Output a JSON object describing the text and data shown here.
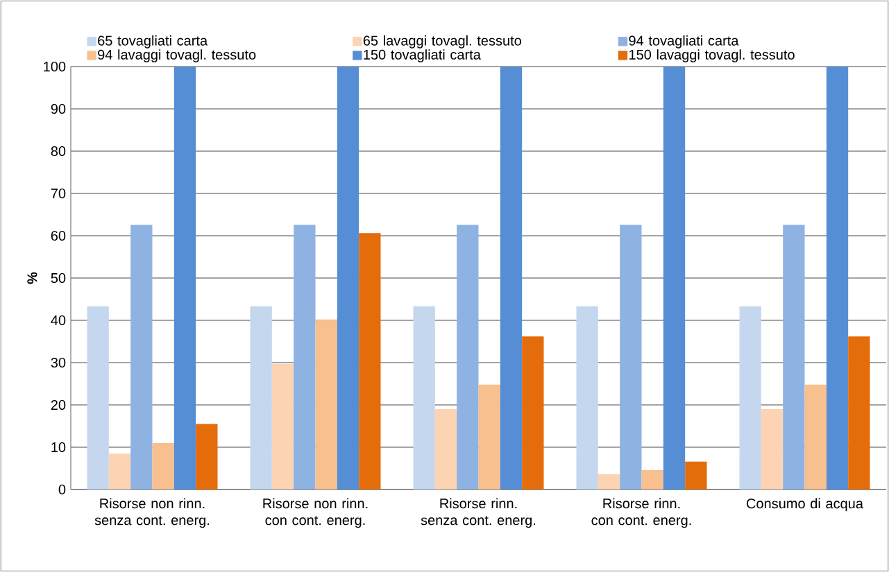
{
  "chart_data": {
    "type": "bar",
    "ylabel": "%",
    "categories": [
      "Risorse non rinn. senza cont. energ.",
      "Risorse non rinn. con cont. energ.",
      "Risorse rinn. senza cont. energ.",
      "Risorse rinn. con cont. energ.",
      "Consumo di acqua"
    ],
    "series": [
      {
        "name": "65 tovagliati carta",
        "color": "#c5d7ef",
        "values": [
          43.3,
          43.3,
          43.3,
          43.3,
          43.3
        ]
      },
      {
        "name": "65 lavaggi tovagl. tessuto",
        "color": "#fcd4b4",
        "values": [
          8.5,
          29.7,
          19.0,
          3.6,
          19.0
        ]
      },
      {
        "name": "94 tovagliati carta",
        "color": "#8eb3e2",
        "values": [
          62.6,
          62.6,
          62.6,
          62.6,
          62.6
        ]
      },
      {
        "name": "94 lavaggi tovagl. tessuto",
        "color": "#f8bf8f",
        "values": [
          11.0,
          40.2,
          24.8,
          4.6,
          24.8
        ]
      },
      {
        "name": "150 tovagliati carta",
        "color": "#558ed5",
        "values": [
          100,
          100,
          100,
          100,
          100
        ]
      },
      {
        "name": "150 lavaggi tovagl. tessuto",
        "color": "#e46c0a",
        "values": [
          15.5,
          60.6,
          36.2,
          6.6,
          36.2
        ]
      }
    ],
    "ylim": [
      0,
      100
    ],
    "yticks": [
      0,
      10,
      20,
      30,
      40,
      50,
      60,
      70,
      80,
      90,
      100
    ],
    "grid": "y",
    "legend": "top"
  }
}
